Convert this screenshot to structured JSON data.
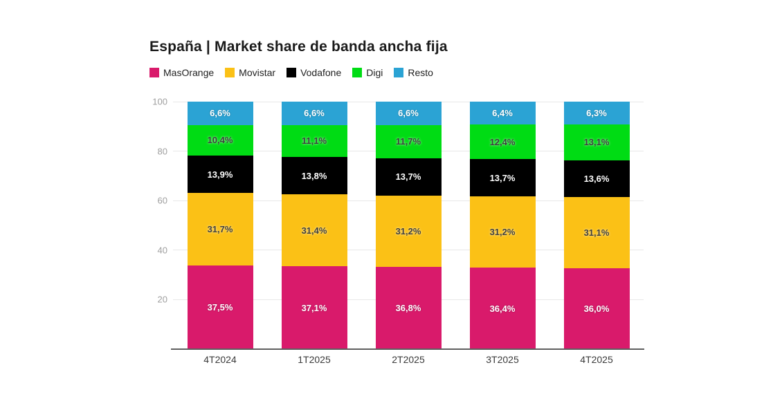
{
  "title": "España | Market share de banda ancha fija",
  "chart_data": {
    "type": "bar",
    "subtype": "stacked-column",
    "title": "España | Market share de banda ancha fija",
    "categories": [
      "4T2024",
      "1T2025",
      "2T2025",
      "3T2025",
      "4T2025"
    ],
    "series": [
      {
        "name": "MasOrange",
        "color": "#D91A6B",
        "label_color": "#ffffff",
        "values": [
          37.5,
          37.1,
          36.8,
          36.4,
          36.0
        ],
        "labels": [
          "37,5%",
          "37,1%",
          "36,8%",
          "36,4%",
          "36,0%"
        ]
      },
      {
        "name": "Movistar",
        "color": "#FBC116",
        "label_color": "#3f3f3f",
        "values": [
          31.7,
          31.4,
          31.2,
          31.2,
          31.1
        ],
        "labels": [
          "31,7%",
          "31,4%",
          "31,2%",
          "31,2%",
          "31,1%"
        ]
      },
      {
        "name": "Vodafone",
        "color": "#000000",
        "label_color": "#ffffff",
        "values": [
          13.9,
          13.8,
          13.7,
          13.7,
          13.6
        ],
        "labels": [
          "13,9%",
          "13,8%",
          "13,7%",
          "13,7%",
          "13,6%"
        ]
      },
      {
        "name": "Digi",
        "color": "#00DC14",
        "label_color": "#3f3f3f",
        "values": [
          10.4,
          11.1,
          11.7,
          12.4,
          13.1
        ],
        "labels": [
          "10,4%",
          "11,1%",
          "11,7%",
          "12,4%",
          "13,1%"
        ]
      },
      {
        "name": "Resto",
        "color": "#2BA3D4",
        "label_color": "#ffffff",
        "values": [
          6.6,
          6.6,
          6.6,
          6.4,
          6.3
        ],
        "labels": [
          "6,6%",
          "6,6%",
          "6,6%",
          "6,4%",
          "6,3%"
        ]
      }
    ],
    "stack_order_bottom_to_top": [
      "MasOrange",
      "Movistar",
      "Vodafone",
      "Digi",
      "Resto"
    ],
    "yticks": [
      20,
      40,
      60,
      80,
      100
    ],
    "ylim": [
      0,
      100
    ],
    "grid": true,
    "legend_position": "top-left",
    "colors": {
      "grid": "#e7e7e7",
      "axis_line": "#5f5f5f",
      "tick_label": "#9e9e9e",
      "category_label": "#3a3a3a",
      "title": "#1a1a1a"
    }
  }
}
